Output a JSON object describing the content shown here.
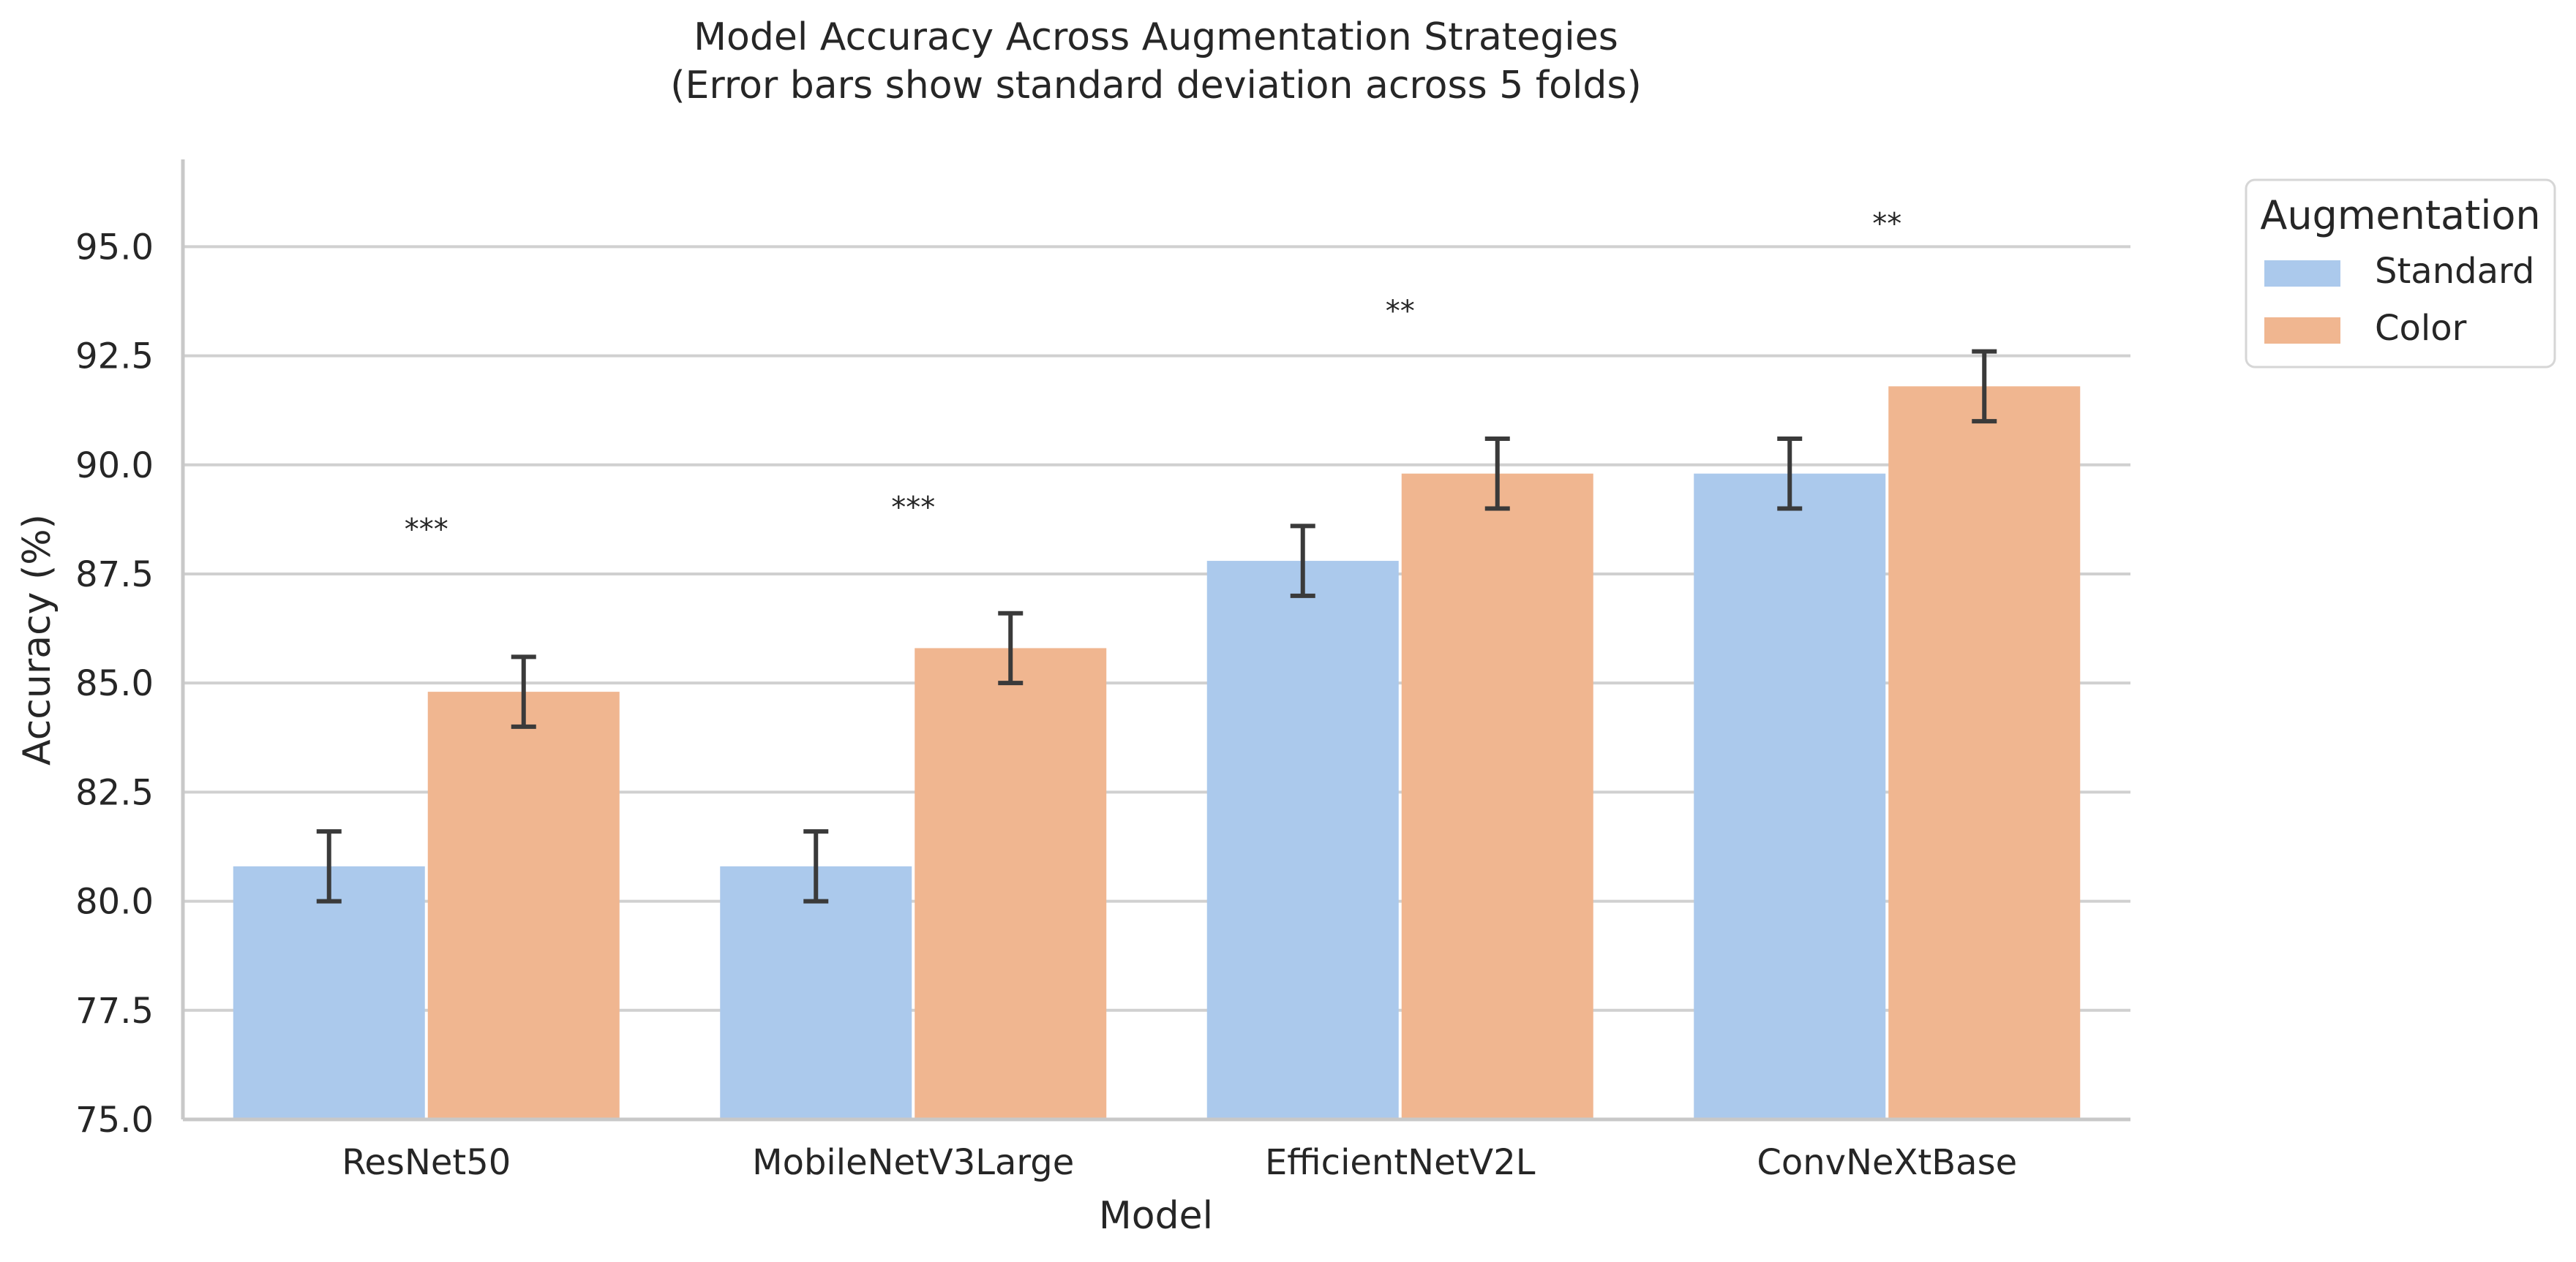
{
  "chart_data": {
    "type": "bar",
    "title": "Model Accuracy Across Augmentation Strategies",
    "subtitle": "(Error bars show standard deviation across 5 folds)",
    "xlabel": "Model",
    "ylabel": "Accuracy (%)",
    "categories": [
      "ResNet50",
      "MobileNetV3Large",
      "EfficientNetV2L",
      "ConvNeXtBase"
    ],
    "series": [
      {
        "name": "Standard",
        "color": "#abc9ec",
        "values": [
          80.8,
          80.8,
          87.8,
          89.8
        ],
        "errors": [
          0.8,
          0.8,
          0.8,
          0.8
        ]
      },
      {
        "name": "Color",
        "color": "#f0b690",
        "values": [
          84.8,
          85.8,
          89.8,
          91.8
        ],
        "errors": [
          0.8,
          0.8,
          0.8,
          0.8
        ]
      }
    ],
    "significance": [
      "***",
      "***",
      "**",
      "**"
    ],
    "significance_y": [
      88.5,
      89.0,
      93.5,
      95.5
    ],
    "ylim": [
      75.0,
      97.0
    ],
    "yticks": [
      "75.0",
      "77.5",
      "80.0",
      "82.5",
      "85.0",
      "87.5",
      "90.0",
      "92.5",
      "95.0"
    ],
    "grid": true,
    "legend": {
      "title": "Augmentation",
      "placement": "outside-top-right"
    },
    "error_bar_color": "#3a3a3a",
    "grid_color": "#d0d0d0",
    "axis_color": "#c8c8c8"
  }
}
